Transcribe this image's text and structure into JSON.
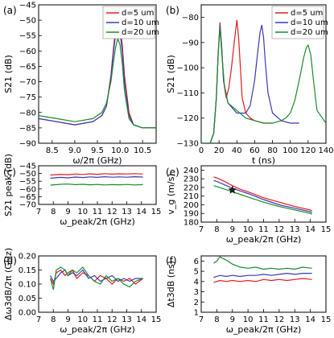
{
  "figure_labels": [
    "(a)",
    "(b)",
    "(c)",
    "(d)",
    "(e)",
    "(f)"
  ],
  "legend_labels": [
    "d=5 um",
    "d=10 um",
    "d=20 um"
  ],
  "series_colors": [
    "#e41a1c",
    "#3a3ab8",
    "#1a8a2e"
  ],
  "chart_data": [
    {
      "id": "a",
      "type": "line",
      "xlabel": "ω/2π (GHz)",
      "ylabel": "S21 (dB)",
      "xlim": [
        8.2,
        10.8
      ],
      "ylim": [
        -90,
        -45
      ],
      "xticks": [
        8.5,
        9.0,
        9.5,
        10.0,
        10.5
      ],
      "xticklabels": [
        "8.5",
        "9.0",
        "9.5",
        "10.0",
        "10.5"
      ],
      "yticks": [
        -90,
        -85,
        -80,
        -75,
        -70,
        -65,
        -60,
        -55,
        -50,
        -45
      ],
      "yticklabels": [
        "−90",
        "−85",
        "−80",
        "−75",
        "−70",
        "−65",
        "−60",
        "−55",
        "−50",
        "−45"
      ],
      "legend": "top-right",
      "series": [
        {
          "name": "d=5 um",
          "x": [
            8.2,
            8.6,
            9.0,
            9.4,
            9.6,
            9.7,
            9.8,
            9.85,
            9.9,
            9.95,
            10.0,
            10.05,
            10.1,
            10.2,
            10.3,
            10.5,
            10.8
          ],
          "y": [
            -82,
            -83,
            -84,
            -83,
            -81,
            -78,
            -68,
            -60,
            -53,
            -50,
            -52,
            -58,
            -68,
            -80,
            -84,
            -85,
            -85
          ]
        },
        {
          "name": "d=10 um",
          "x": [
            8.2,
            8.6,
            9.0,
            9.4,
            9.6,
            9.7,
            9.8,
            9.85,
            9.9,
            9.95,
            10.0,
            10.05,
            10.1,
            10.2,
            10.3,
            10.5,
            10.8
          ],
          "y": [
            -82,
            -83,
            -84,
            -83,
            -81,
            -78,
            -69,
            -61,
            -55,
            -52,
            -54,
            -60,
            -70,
            -81,
            -84,
            -85,
            -85
          ]
        },
        {
          "name": "d=20 um",
          "x": [
            8.2,
            8.6,
            9.0,
            9.4,
            9.6,
            9.7,
            9.8,
            9.85,
            9.9,
            9.95,
            10.0,
            10.05,
            10.1,
            10.2,
            10.3,
            10.5,
            10.8
          ],
          "y": [
            -81,
            -82,
            -83,
            -82,
            -80,
            -77,
            -70,
            -64,
            -59,
            -56,
            -58,
            -64,
            -73,
            -82,
            -84,
            -85,
            -85
          ]
        }
      ]
    },
    {
      "id": "b",
      "type": "line",
      "xlabel": "t (ns)",
      "ylabel": "S21 (dB)",
      "xlim": [
        0,
        140
      ],
      "ylim": [
        -130,
        -75
      ],
      "xticks": [
        0,
        20,
        40,
        60,
        80,
        100,
        120,
        140
      ],
      "xticklabels": [
        "0",
        "20",
        "40",
        "60",
        "80",
        "100",
        "120",
        "140"
      ],
      "yticks": [
        -130,
        -120,
        -110,
        -100,
        -90,
        -80
      ],
      "yticklabels": [
        "−130",
        "−120",
        "−110",
        "−100",
        "−90",
        "−80"
      ],
      "legend": "top-right",
      "series": [
        {
          "name": "d=5 um",
          "x": [
            0,
            5,
            10,
            14,
            17,
            19,
            21,
            23,
            25,
            28,
            31,
            34,
            37,
            40,
            42,
            44,
            46,
            50,
            55,
            60,
            70,
            80
          ],
          "y": [
            -130,
            -130,
            -130,
            -126,
            -112,
            -95,
            -82,
            -92,
            -105,
            -112,
            -108,
            -100,
            -90,
            -81,
            -88,
            -100,
            -112,
            -118,
            -120,
            -121,
            -122,
            -122
          ]
        },
        {
          "name": "d=10 um",
          "x": [
            0,
            5,
            10,
            14,
            17,
            19,
            21,
            23,
            25,
            30,
            40,
            50,
            55,
            60,
            63,
            66,
            68,
            70,
            72,
            75,
            80,
            90,
            100,
            110
          ],
          "y": [
            -130,
            -130,
            -130,
            -126,
            -112,
            -95,
            -83,
            -92,
            -105,
            -114,
            -118,
            -118,
            -115,
            -105,
            -95,
            -86,
            -83,
            -88,
            -98,
            -110,
            -118,
            -121,
            -122,
            -122
          ]
        },
        {
          "name": "d=20 um",
          "x": [
            0,
            5,
            10,
            14,
            17,
            19,
            21,
            23,
            26,
            30,
            40,
            50,
            60,
            70,
            80,
            90,
            95,
            100,
            105,
            110,
            115,
            118,
            120,
            123,
            126,
            130,
            140
          ],
          "y": [
            -130,
            -130,
            -130,
            -126,
            -112,
            -95,
            -84,
            -94,
            -107,
            -114,
            -117,
            -120,
            -121,
            -122,
            -122,
            -121,
            -120,
            -118,
            -113,
            -105,
            -96,
            -92,
            -91,
            -95,
            -105,
            -117,
            -122
          ]
        }
      ]
    },
    {
      "id": "c",
      "type": "line",
      "xlabel": "ω_peak/2π (GHz)",
      "ylabel": "S21 peak (dB)",
      "xlim": [
        7,
        15
      ],
      "ylim": [
        -70,
        -45
      ],
      "xticks": [
        7,
        8,
        9,
        10,
        11,
        12,
        13,
        14,
        15
      ],
      "xticklabels": [
        "7",
        "8",
        "9",
        "10",
        "11",
        "12",
        "13",
        "14",
        "15"
      ],
      "yticks": [
        -70,
        -65,
        -60,
        -55,
        -50,
        -45
      ],
      "yticklabels": [
        "−70",
        "−65",
        "−60",
        "−55",
        "−50",
        "−45"
      ],
      "series": [
        {
          "name": "d=5 um",
          "x": [
            7.8,
            8.5,
            9,
            9.5,
            10,
            10.5,
            11,
            11.5,
            12,
            12.5,
            13,
            13.5,
            14.1
          ],
          "y": [
            -51,
            -50.5,
            -50.8,
            -50.3,
            -50.6,
            -50.2,
            -50.5,
            -50.1,
            -50.4,
            -50.2,
            -50.3,
            -50.1,
            -50.3
          ]
        },
        {
          "name": "d=10 um",
          "x": [
            7.8,
            8.5,
            9,
            9.5,
            10,
            10.5,
            11,
            11.5,
            12,
            12.5,
            13,
            13.5,
            14.1
          ],
          "y": [
            -53,
            -52.5,
            -52.8,
            -52.3,
            -52.6,
            -52.2,
            -52.5,
            -52.1,
            -52.4,
            -52.2,
            -52.4,
            -52.1,
            -52.3
          ]
        },
        {
          "name": "d=20 um",
          "x": [
            7.8,
            8.5,
            9,
            9.5,
            10,
            10.5,
            11,
            11.5,
            12,
            12.5,
            13,
            13.5,
            14.1
          ],
          "y": [
            -57.5,
            -57,
            -56.8,
            -57.2,
            -57,
            -57.3,
            -57.1,
            -57.4,
            -57.2,
            -57.3,
            -57.1,
            -57.4,
            -57.2
          ]
        }
      ]
    },
    {
      "id": "e",
      "type": "line",
      "xlabel": "ω_peak/2π (GHz)",
      "ylabel": "v_g (m/s)",
      "xlim": [
        7,
        15
      ],
      "ylim": [
        180,
        245
      ],
      "xticks": [
        7,
        8,
        9,
        10,
        11,
        12,
        13,
        14,
        15
      ],
      "xticklabels": [
        "7",
        "8",
        "9",
        "10",
        "11",
        "12",
        "13",
        "14",
        "15"
      ],
      "yticks": [
        180,
        190,
        200,
        210,
        220,
        230,
        240
      ],
      "yticklabels": [
        "180",
        "190",
        "200",
        "210",
        "220",
        "230",
        "240"
      ],
      "marker": {
        "x": 9.0,
        "y": 217,
        "symbol": "star"
      },
      "series": [
        {
          "name": "d=5 um",
          "x": [
            7.8,
            8,
            8.5,
            9,
            9.5,
            10,
            11,
            12,
            13,
            14,
            14.1
          ],
          "y": [
            232,
            231,
            227,
            222,
            218,
            215,
            208,
            203,
            198,
            194,
            193
          ]
        },
        {
          "name": "d=10 um",
          "x": [
            7.8,
            8,
            8.5,
            9,
            9.5,
            10,
            11,
            12,
            13,
            14,
            14.1
          ],
          "y": [
            228,
            227,
            223,
            219,
            216,
            213,
            206,
            200,
            196,
            192,
            191
          ]
        },
        {
          "name": "d=20 um",
          "x": [
            7.8,
            8,
            8.5,
            9,
            9.5,
            10,
            11,
            12,
            13,
            14,
            14.1
          ],
          "y": [
            222,
            221,
            218,
            215,
            212,
            209,
            203,
            198,
            194,
            190,
            189
          ]
        }
      ]
    },
    {
      "id": "d",
      "type": "line",
      "xlabel": "ω_peak/2π (GHz)",
      "ylabel": "Δω3dB/2π (GHz)",
      "xlim": [
        7,
        15
      ],
      "ylim": [
        0.0,
        0.2
      ],
      "xticks": [
        7,
        8,
        9,
        10,
        11,
        12,
        13,
        14,
        15
      ],
      "xticklabels": [
        "7",
        "8",
        "9",
        "10",
        "11",
        "12",
        "13",
        "14",
        "15"
      ],
      "yticks": [
        0.0,
        0.05,
        0.1,
        0.15,
        0.2
      ],
      "yticklabels": [
        "0.00",
        "0.05",
        "0.10",
        "0.15",
        "0.20"
      ],
      "series": [
        {
          "name": "d=5 um",
          "x": [
            7.8,
            8,
            8.2,
            8.5,
            8.8,
            9,
            9.3,
            9.6,
            10,
            10.4,
            10.8,
            11.2,
            11.6,
            12,
            12.4,
            12.8,
            13.2,
            13.6,
            14.1
          ],
          "y": [
            0.12,
            0.1,
            0.14,
            0.15,
            0.13,
            0.14,
            0.15,
            0.12,
            0.14,
            0.13,
            0.11,
            0.13,
            0.12,
            0.1,
            0.12,
            0.11,
            0.12,
            0.1,
            0.12
          ]
        },
        {
          "name": "d=10 um",
          "x": [
            7.8,
            8,
            8.2,
            8.5,
            8.8,
            9,
            9.3,
            9.6,
            10,
            10.4,
            10.8,
            11.2,
            11.6,
            12,
            12.4,
            12.8,
            13.2,
            13.6,
            14.1
          ],
          "y": [
            0.13,
            0.11,
            0.12,
            0.14,
            0.15,
            0.13,
            0.14,
            0.13,
            0.15,
            0.12,
            0.13,
            0.11,
            0.12,
            0.13,
            0.11,
            0.12,
            0.11,
            0.12,
            0.12
          ]
        },
        {
          "name": "d=20 um",
          "x": [
            7.8,
            8,
            8.2,
            8.5,
            8.8,
            9,
            9.3,
            9.6,
            10,
            10.4,
            10.8,
            11.2,
            11.6,
            12,
            12.4,
            12.8,
            13.2,
            13.6,
            14.1
          ],
          "y": [
            0.12,
            0.08,
            0.15,
            0.16,
            0.15,
            0.13,
            0.15,
            0.14,
            0.16,
            0.13,
            0.11,
            0.1,
            0.13,
            0.11,
            0.12,
            0.1,
            0.09,
            0.11,
            0.12
          ]
        }
      ]
    },
    {
      "id": "f",
      "type": "line",
      "xlabel": "ω_peak/2π (GHz)",
      "ylabel": "Δt3dB (ns)",
      "xlim": [
        7,
        15
      ],
      "ylim": [
        1,
        6.5
      ],
      "xticks": [
        7,
        8,
        9,
        10,
        11,
        12,
        13,
        14,
        15
      ],
      "xticklabels": [
        "7",
        "8",
        "9",
        "10",
        "11",
        "12",
        "13",
        "14",
        "15"
      ],
      "yticks": [
        1,
        2,
        3,
        4,
        5,
        6
      ],
      "yticklabels": [
        "1",
        "2",
        "3",
        "4",
        "5",
        "6"
      ],
      "series": [
        {
          "name": "d=5 um",
          "x": [
            7.8,
            8.2,
            8.6,
            9,
            9.5,
            10,
            10.5,
            11,
            11.5,
            12,
            12.5,
            13,
            13.5,
            14.1
          ],
          "y": [
            3.9,
            4.1,
            4.0,
            4.1,
            4.0,
            4.1,
            4.0,
            4.2,
            4.1,
            4.2,
            4.1,
            4.2,
            4.3,
            4.2
          ]
        },
        {
          "name": "d=10 um",
          "x": [
            7.8,
            8.2,
            8.6,
            9,
            9.5,
            10,
            10.5,
            11,
            11.5,
            12,
            12.5,
            13,
            13.5,
            14.1
          ],
          "y": [
            4.4,
            4.6,
            4.5,
            4.6,
            4.5,
            4.6,
            4.6,
            4.7,
            4.6,
            4.7,
            4.8,
            4.7,
            4.8,
            4.8
          ]
        },
        {
          "name": "d=20 um",
          "x": [
            7.8,
            8,
            8.2,
            8.6,
            9,
            9.5,
            10,
            10.5,
            11,
            11.5,
            12,
            12.5,
            13,
            13.5,
            14.1
          ],
          "y": [
            5.8,
            6.0,
            6.4,
            6.1,
            5.7,
            5.4,
            5.3,
            5.4,
            5.2,
            5.3,
            5.2,
            5.3,
            5.2,
            5.4,
            5.3
          ]
        }
      ]
    }
  ]
}
